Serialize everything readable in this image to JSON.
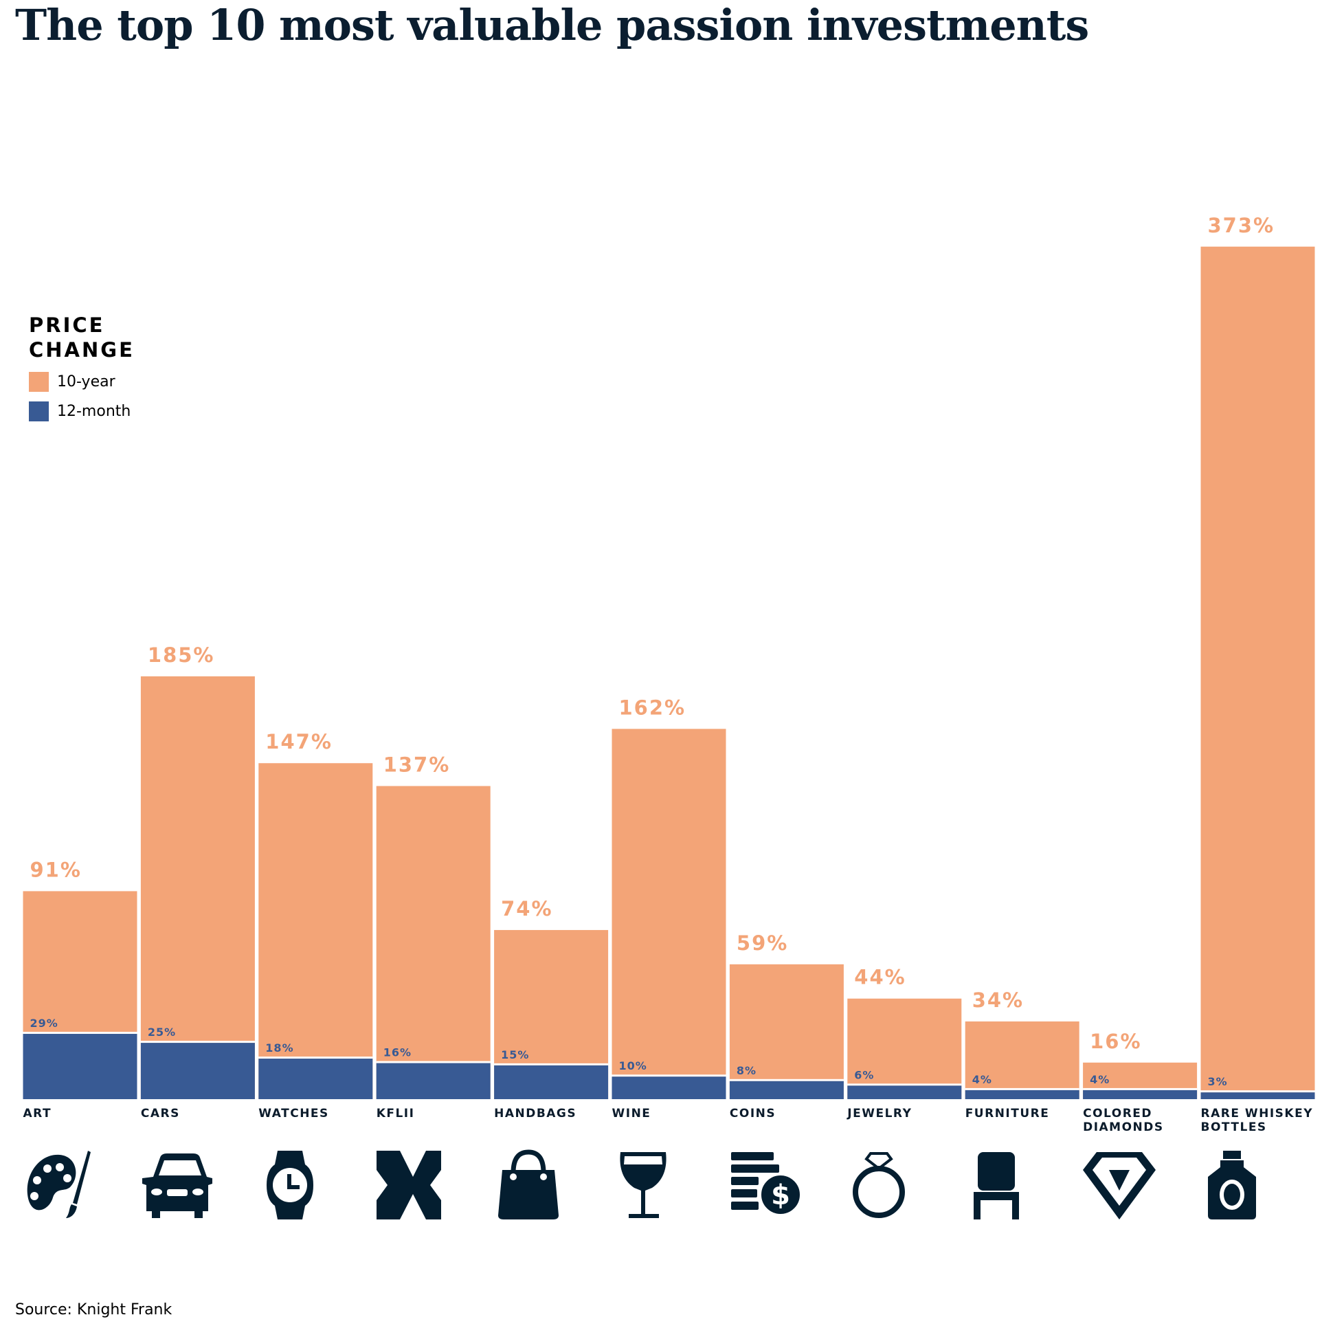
{
  "title": "The top 10 most valuable passion investments",
  "legend": {
    "title_line1": "PRICE",
    "title_line2": "CHANGE",
    "items": [
      {
        "label": "10-year",
        "color": "#F3A477"
      },
      {
        "label": "12-month",
        "color": "#385A94"
      }
    ]
  },
  "source": "Source: Knight Frank",
  "chart_data": {
    "type": "bar",
    "title": "The top 10 most valuable passion investments",
    "categories": [
      "ART",
      "CARS",
      "WATCHES",
      "KFLII",
      "HANDBAGS",
      "WINE",
      "COINS",
      "JEWELRY",
      "FURNITURE",
      "COLORED DIAMONDS",
      "RARE WHISKEY BOTTLES"
    ],
    "category_lines": [
      [
        "ART"
      ],
      [
        "CARS"
      ],
      [
        "WATCHES"
      ],
      [
        "KFLII"
      ],
      [
        "HANDBAGS"
      ],
      [
        "WINE"
      ],
      [
        "COINS"
      ],
      [
        "JEWELRY"
      ],
      [
        "FURNITURE"
      ],
      [
        "COLORED",
        "DIAMONDS"
      ],
      [
        "RARE WHISKEY",
        "BOTTLES"
      ]
    ],
    "icons": [
      "palette-icon",
      "car-icon",
      "watch-icon",
      "kflii-icon",
      "handbag-icon",
      "wine-glass-icon",
      "coins-icon",
      "ring-icon",
      "chair-icon",
      "diamond-icon",
      "whiskey-bottle-icon"
    ],
    "series": [
      {
        "name": "10-year",
        "color": "#F3A477",
        "values": [
          91,
          185,
          147,
          137,
          74,
          162,
          59,
          44,
          34,
          16,
          373
        ],
        "labels": [
          "91%",
          "185%",
          "147%",
          "137%",
          "74%",
          "162%",
          "59%",
          "44%",
          "34%",
          "16%",
          "373%"
        ]
      },
      {
        "name": "12-month",
        "color": "#385A94",
        "values": [
          29,
          25,
          18,
          16,
          15,
          10,
          8,
          6,
          4,
          4,
          3
        ],
        "labels": [
          "29%",
          "25%",
          "18%",
          "16%",
          "15%",
          "10%",
          "8%",
          "6%",
          "4%",
          "4%",
          "3%"
        ]
      }
    ],
    "ylim": [
      0,
      373
    ],
    "grid": false,
    "legend_position": "left"
  }
}
